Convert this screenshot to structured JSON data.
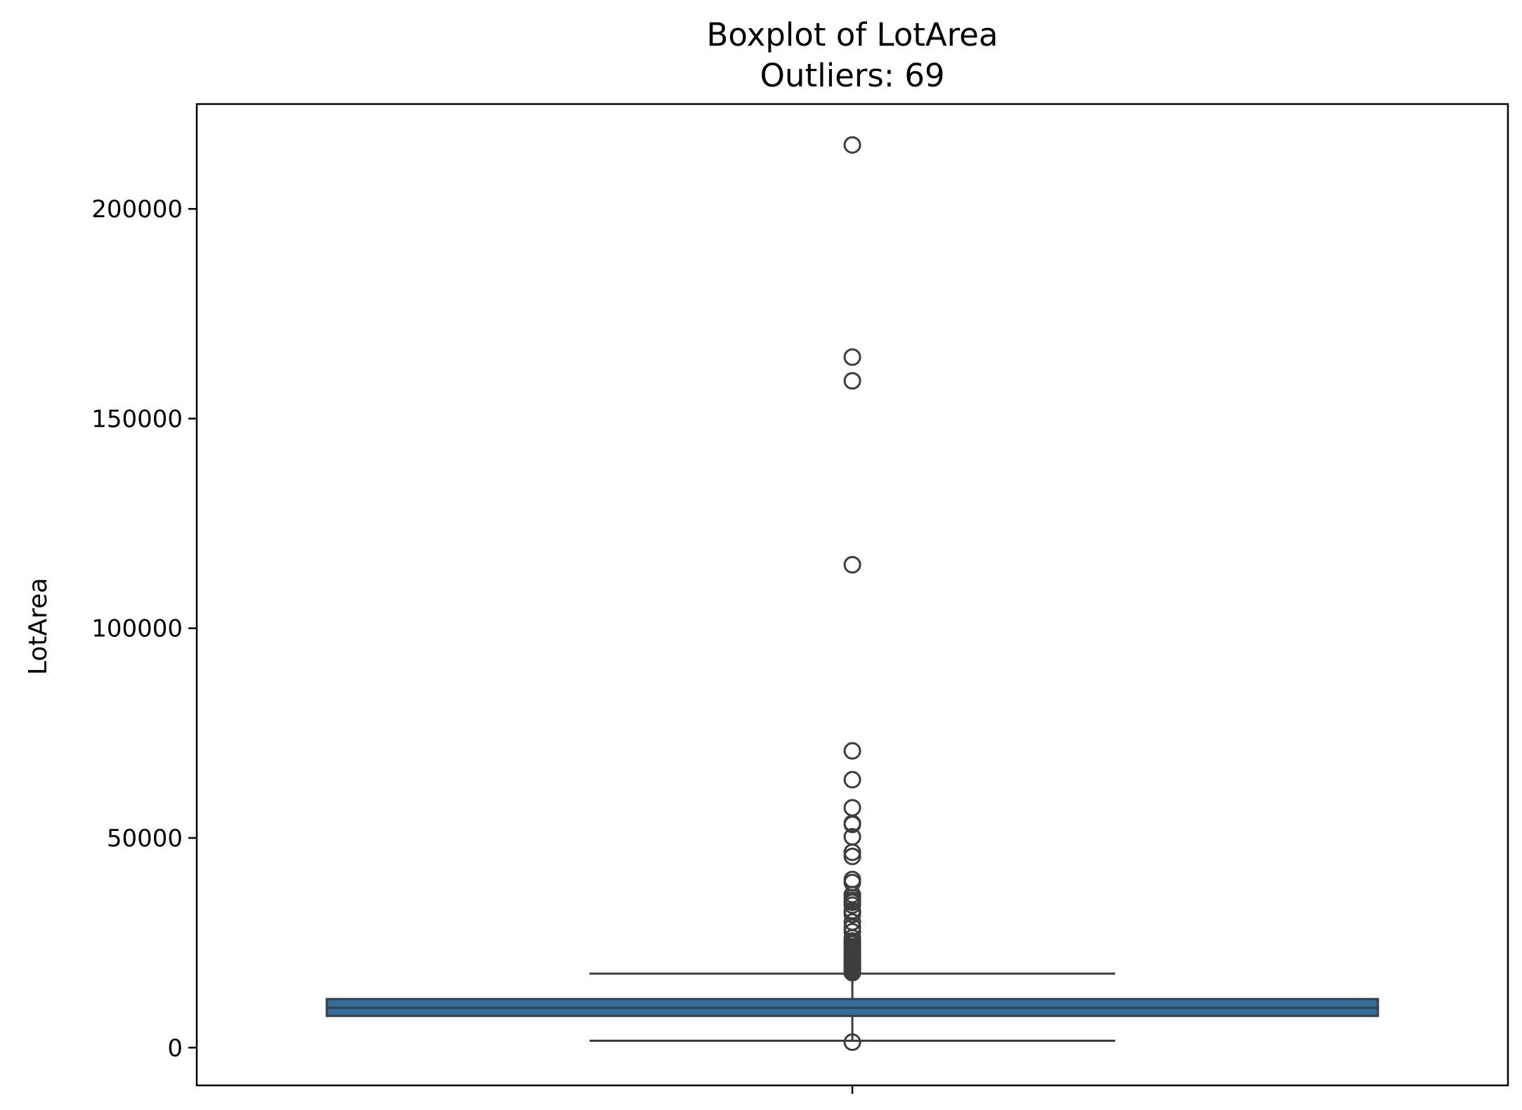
{
  "chart_data": {
    "type": "box",
    "title": "Boxplot of LotArea",
    "subtitle": "Outliers: 69",
    "xlabel": "",
    "ylabel": "LotArea",
    "ylim": [
      -9000,
      225000
    ],
    "yticks": [
      0,
      50000,
      100000,
      150000,
      200000
    ],
    "grid": false,
    "legend": "none",
    "colors": {
      "box_fill": "#2f6f9f",
      "line": "#3d3d3d",
      "axes": "#000000"
    },
    "box": {
      "q1": 7550,
      "median": 9480,
      "q3": 11600,
      "whisker_low": 1650,
      "whisker_high": 17650
    },
    "outliers": [
      215245,
      164660,
      159000,
      115149,
      70761,
      63887,
      57200,
      53504,
      53227,
      50271,
      46589,
      45600,
      40094,
      39384,
      36500,
      35760,
      35133,
      34650,
      33983,
      32668,
      32463,
      31770,
      29959,
      28698,
      27650,
      26178,
      25419,
      25286,
      25095,
      24682,
      24090,
      23730,
      23595,
      23257,
      22950,
      22420,
      21930,
      21872,
      21780,
      21695,
      21533,
      21384,
      21286,
      21000,
      20896,
      20781,
      20544,
      20431,
      20355,
      20062,
      19900,
      19800,
      19690,
      19550,
      19378,
      19296,
      19138,
      19050,
      18890,
      18800,
      18694,
      18450,
      18386,
      18261,
      18160,
      18030,
      17920,
      17871,
      1300
    ]
  }
}
